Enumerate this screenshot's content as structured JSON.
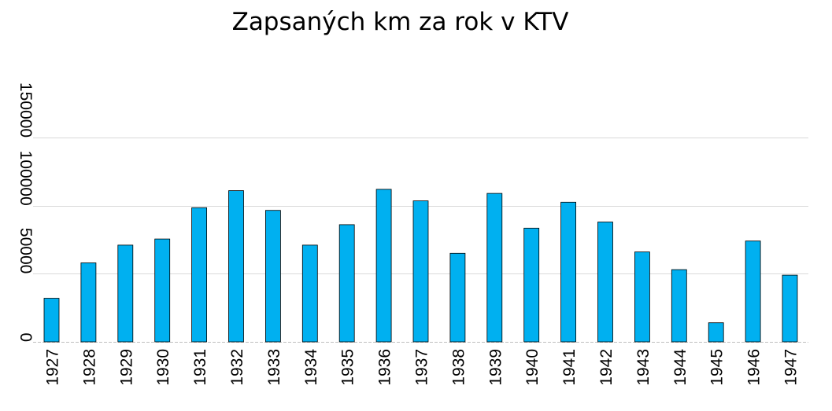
{
  "colors": {
    "bar": "#00b0f0",
    "bar_outline": "#000000",
    "grid": "#d9d9d9",
    "axis": "#bfbfbf"
  },
  "chart_data": {
    "type": "bar",
    "title": "Zapsaných km za rok v KTV",
    "xlabel": "",
    "ylabel": "",
    "categories": [
      "1927",
      "1928",
      "1929",
      "1930",
      "1931",
      "1932",
      "1933",
      "1934",
      "1935",
      "1936",
      "1937",
      "1938",
      "1939",
      "1940",
      "1941",
      "1942",
      "1943",
      "1944",
      "1945",
      "1946",
      "1947"
    ],
    "values": [
      32000,
      58000,
      71000,
      75500,
      98500,
      111000,
      96500,
      71000,
      86000,
      112000,
      103500,
      65000,
      109000,
      83500,
      102500,
      88000,
      66000,
      53000,
      14000,
      74000,
      49000
    ],
    "ylim": [
      0,
      150000
    ],
    "yticks": [
      0,
      50000,
      100000,
      150000
    ],
    "ytick_labels": [
      "0",
      "50000",
      "100000",
      "150000"
    ],
    "grid": true,
    "legend": "none"
  }
}
